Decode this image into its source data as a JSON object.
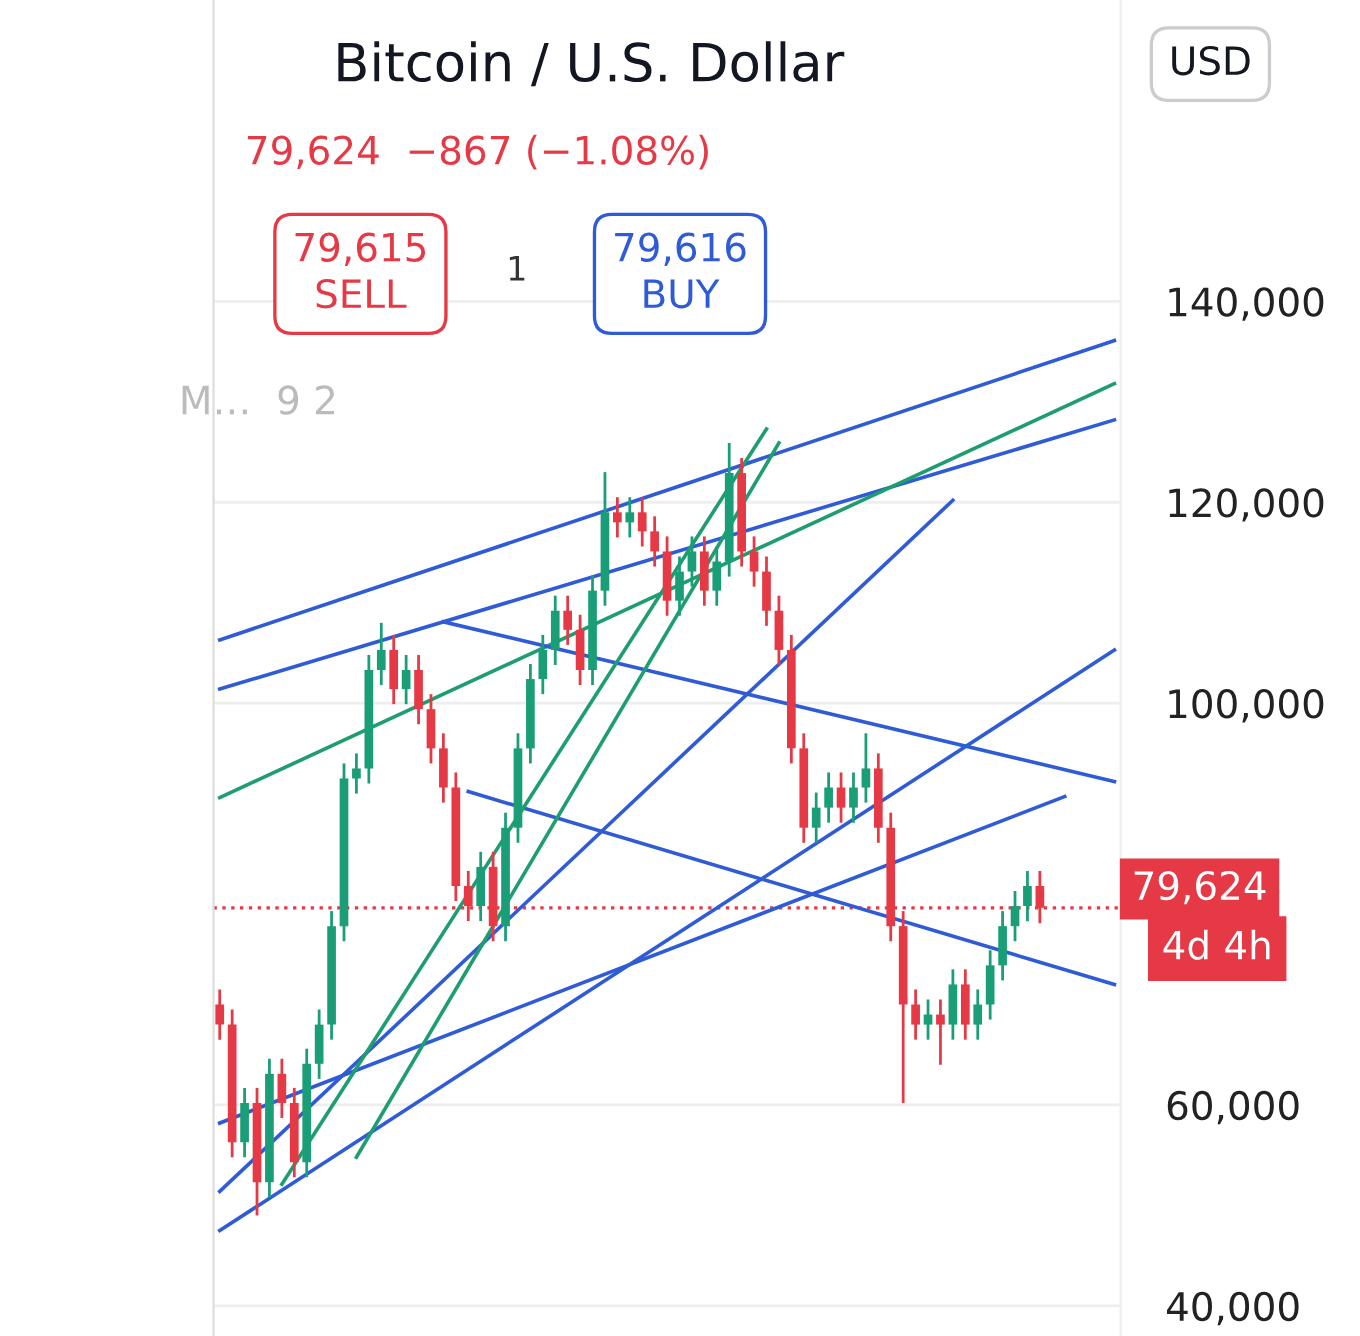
{
  "chart_data": {
    "type": "candlestick",
    "title": "Bitcoin / U.S. Dollar",
    "subtitle": "79,624  −867 (−1.08%)",
    "categories": [
      null,
      null,
      null,
      null,
      null,
      null,
      null,
      null,
      null,
      null,
      null,
      null,
      null,
      null,
      null,
      null,
      null,
      null,
      null,
      null,
      null,
      null,
      null,
      null,
      null,
      null,
      null,
      null,
      null,
      null,
      null,
      null,
      null,
      null,
      null,
      null,
      null,
      null,
      null,
      null,
      null,
      null,
      null,
      null,
      null,
      null,
      null,
      null,
      null,
      null,
      null,
      null,
      null,
      null,
      null,
      null,
      null,
      null,
      null,
      null,
      null,
      null,
      null,
      null,
      null,
      null,
      null,
      null,
      null,
      null,
      null,
      null,
      null
    ],
    "ohlc": [
      [
        70000,
        71500,
        66500,
        68000
      ],
      [
        68000,
        69500,
        54800,
        56300
      ],
      [
        56300,
        61700,
        54800,
        60200
      ],
      [
        60200,
        61700,
        49000,
        52300
      ],
      [
        52300,
        64600,
        50800,
        63100
      ],
      [
        63100,
        64600,
        58700,
        60200
      ],
      [
        60200,
        61700,
        52800,
        54300
      ],
      [
        54300,
        65600,
        52800,
        64100
      ],
      [
        64100,
        69500,
        62600,
        68000
      ],
      [
        68000,
        79300,
        66500,
        77800
      ],
      [
        77800,
        94000,
        76300,
        92500
      ],
      [
        92500,
        95000,
        91000,
        93500
      ],
      [
        93500,
        104800,
        92000,
        103300
      ],
      [
        103300,
        108000,
        101800,
        105300
      ],
      [
        105300,
        106800,
        99900,
        101400
      ],
      [
        101400,
        104800,
        99900,
        103300
      ],
      [
        103300,
        104800,
        97900,
        99400
      ],
      [
        99400,
        100900,
        94000,
        95500
      ],
      [
        95500,
        97000,
        90100,
        91600
      ],
      [
        91600,
        93100,
        80300,
        81800
      ],
      [
        81800,
        83300,
        78300,
        79800
      ],
      [
        79800,
        85200,
        78300,
        83700
      ],
      [
        83700,
        85200,
        76300,
        77800
      ],
      [
        77800,
        89100,
        76300,
        87600
      ],
      [
        87600,
        97000,
        86100,
        95500
      ],
      [
        95500,
        103900,
        94000,
        102400
      ],
      [
        102400,
        106800,
        100900,
        105300
      ],
      [
        105300,
        110700,
        103800,
        109200
      ],
      [
        109200,
        110700,
        105800,
        107300
      ],
      [
        107300,
        108800,
        101800,
        103300
      ],
      [
        103300,
        112700,
        101800,
        111200
      ],
      [
        111200,
        123000,
        109700,
        119000
      ],
      [
        119000,
        120500,
        116500,
        118000
      ],
      [
        118000,
        120500,
        116500,
        119000
      ],
      [
        119000,
        120500,
        115600,
        117100
      ],
      [
        117100,
        118600,
        113600,
        115100
      ],
      [
        115100,
        116600,
        108700,
        110200
      ],
      [
        110200,
        114600,
        108700,
        113100
      ],
      [
        113100,
        116600,
        111600,
        115100
      ],
      [
        115100,
        116600,
        109700,
        111200
      ],
      [
        111200,
        115600,
        109700,
        114100
      ],
      [
        114100,
        125900,
        112600,
        122900
      ],
      [
        122900,
        124400,
        113600,
        115100
      ],
      [
        115100,
        116600,
        111600,
        113100
      ],
      [
        113100,
        114600,
        107700,
        109200
      ],
      [
        109200,
        110700,
        103800,
        105300
      ],
      [
        105300,
        106800,
        94000,
        95500
      ],
      [
        95500,
        97000,
        86100,
        87600
      ],
      [
        87600,
        91100,
        86100,
        89600
      ],
      [
        89600,
        93100,
        88100,
        91600
      ],
      [
        91600,
        93100,
        88100,
        89600
      ],
      [
        89600,
        93100,
        88100,
        91600
      ],
      [
        91600,
        97000,
        90100,
        93500
      ],
      [
        93500,
        95000,
        86100,
        87600
      ],
      [
        87600,
        89100,
        76300,
        77800
      ],
      [
        77800,
        79300,
        60200,
        70000
      ],
      [
        70000,
        71500,
        66500,
        68000
      ],
      [
        68000,
        70500,
        66500,
        69000
      ],
      [
        69000,
        70500,
        64000,
        68000
      ],
      [
        68000,
        73500,
        66500,
        72000
      ],
      [
        72000,
        73500,
        66500,
        68000
      ],
      [
        68000,
        71500,
        66500,
        70000
      ],
      [
        70000,
        75400,
        68500,
        73900
      ],
      [
        73900,
        79300,
        72400,
        77800
      ],
      [
        77800,
        81300,
        76300,
        79800
      ],
      [
        79800,
        83300,
        78300,
        81800
      ],
      [
        81800,
        83300,
        78100,
        79624
      ],
      null,
      null,
      null,
      null,
      null,
      null
    ],
    "series": [
      {
        "type": "line",
        "color": "#2f5bd6",
        "values": [
          106300,
          null,
          null,
          null,
          null,
          null,
          null,
          null,
          null,
          null,
          null,
          null,
          null,
          null,
          null,
          null,
          null,
          null,
          null,
          null,
          null,
          null,
          null,
          null,
          null,
          null,
          null,
          null,
          null,
          null,
          null,
          null,
          null,
          null,
          null,
          null,
          null,
          null,
          null,
          null,
          null,
          null,
          null,
          null,
          null,
          null,
          null,
          null,
          null,
          null,
          null,
          null,
          null,
          null,
          null,
          null,
          null,
          null,
          null,
          null,
          null,
          null,
          null,
          null,
          null,
          null,
          null,
          null,
          null,
          null,
          null,
          null,
          136100
        ]
      },
      {
        "type": "line",
        "color": "#2f5bd6",
        "values": [
          101400,
          null,
          null,
          null,
          null,
          null,
          null,
          null,
          null,
          null,
          null,
          null,
          null,
          null,
          null,
          null,
          null,
          null,
          null,
          null,
          null,
          null,
          null,
          null,
          null,
          null,
          null,
          null,
          null,
          null,
          null,
          null,
          null,
          null,
          null,
          null,
          null,
          null,
          null,
          null,
          null,
          null,
          null,
          null,
          null,
          null,
          null,
          null,
          null,
          null,
          null,
          null,
          null,
          null,
          null,
          null,
          null,
          null,
          null,
          null,
          null,
          null,
          null,
          null,
          null,
          null,
          null,
          null,
          null,
          null,
          null,
          null,
          128200
        ]
      },
      {
        "type": "line",
        "color": "#1e9e6e",
        "values": [
          90600,
          null,
          null,
          null,
          null,
          null,
          null,
          null,
          null,
          null,
          null,
          null,
          null,
          null,
          null,
          null,
          null,
          null,
          null,
          null,
          null,
          null,
          null,
          null,
          null,
          null,
          null,
          null,
          null,
          null,
          null,
          null,
          null,
          null,
          null,
          null,
          null,
          null,
          null,
          null,
          null,
          null,
          null,
          null,
          null,
          null,
          null,
          null,
          null,
          null,
          null,
          null,
          null,
          null,
          null,
          null,
          null,
          null,
          null,
          null,
          null,
          null,
          null,
          null,
          null,
          null,
          null,
          null,
          null,
          null,
          null,
          null,
          131800
        ]
      },
      {
        "type": "line",
        "color": "#2f5bd6",
        "values": [
          null,
          null,
          null,
          null,
          null,
          null,
          null,
          null,
          null,
          null,
          null,
          null,
          null,
          null,
          null,
          null,
          null,
          null,
          108100,
          null,
          null,
          null,
          null,
          null,
          null,
          null,
          null,
          null,
          null,
          null,
          null,
          null,
          null,
          null,
          null,
          null,
          null,
          null,
          null,
          null,
          null,
          null,
          null,
          null,
          null,
          null,
          null,
          null,
          null,
          null,
          null,
          null,
          null,
          null,
          null,
          null,
          null,
          null,
          null,
          null,
          null,
          null,
          null,
          null,
          null,
          null,
          null,
          null,
          null,
          null,
          null,
          null,
          92200
        ]
      },
      {
        "type": "line",
        "color": "#2f5bd6",
        "values": [
          null,
          null,
          null,
          null,
          null,
          null,
          null,
          null,
          null,
          null,
          null,
          null,
          null,
          null,
          null,
          null,
          null,
          null,
          null,
          null,
          91200,
          null,
          null,
          null,
          null,
          null,
          null,
          null,
          null,
          null,
          null,
          null,
          null,
          null,
          null,
          null,
          null,
          null,
          null,
          null,
          null,
          null,
          null,
          null,
          null,
          null,
          null,
          null,
          null,
          null,
          null,
          null,
          null,
          null,
          null,
          null,
          null,
          null,
          null,
          null,
          null,
          null,
          null,
          null,
          null,
          null,
          null,
          null,
          null,
          null,
          null,
          null,
          72000
        ]
      },
      {
        "type": "line",
        "color": "#2f5bd6",
        "values": [
          58200,
          null,
          null,
          null,
          null,
          null,
          null,
          null,
          null,
          null,
          null,
          null,
          null,
          null,
          null,
          null,
          null,
          null,
          null,
          null,
          null,
          null,
          null,
          null,
          null,
          null,
          null,
          null,
          null,
          null,
          null,
          null,
          null,
          null,
          null,
          null,
          null,
          null,
          null,
          null,
          null,
          null,
          null,
          null,
          null,
          null,
          null,
          null,
          null,
          null,
          null,
          null,
          null,
          null,
          null,
          null,
          null,
          null,
          null,
          null,
          null,
          null,
          null,
          null,
          null,
          null,
          null,
          null,
          90700,
          null,
          null,
          null,
          null
        ]
      },
      {
        "type": "line",
        "color": "#2f5bd6",
        "values": [
          47500,
          null,
          null,
          null,
          null,
          null,
          null,
          null,
          null,
          null,
          null,
          null,
          null,
          null,
          null,
          null,
          null,
          null,
          null,
          null,
          null,
          null,
          null,
          null,
          null,
          null,
          null,
          null,
          null,
          null,
          null,
          null,
          null,
          null,
          null,
          null,
          null,
          null,
          null,
          null,
          null,
          null,
          null,
          null,
          null,
          null,
          null,
          null,
          null,
          null,
          null,
          null,
          null,
          null,
          null,
          null,
          null,
          null,
          null,
          null,
          null,
          null,
          null,
          null,
          null,
          null,
          null,
          null,
          null,
          null,
          null,
          null,
          105300
        ]
      },
      {
        "type": "line",
        "color": "#2f5bd6",
        "values": [
          51400,
          null,
          null,
          null,
          null,
          null,
          null,
          null,
          null,
          null,
          null,
          null,
          null,
          null,
          null,
          null,
          null,
          null,
          null,
          null,
          null,
          null,
          null,
          null,
          null,
          null,
          null,
          null,
          null,
          null,
          null,
          null,
          null,
          null,
          null,
          null,
          null,
          null,
          null,
          null,
          null,
          null,
          null,
          null,
          null,
          null,
          null,
          null,
          null,
          null,
          null,
          null,
          null,
          null,
          null,
          null,
          null,
          null,
          null,
          120200,
          null,
          null,
          null,
          null,
          null,
          null,
          null,
          null,
          null,
          null,
          null,
          null,
          null
        ]
      },
      {
        "type": "line",
        "color": "#1e9e6e",
        "values": [
          null,
          null,
          null,
          null,
          null,
          52100,
          null,
          null,
          null,
          null,
          null,
          null,
          null,
          null,
          null,
          null,
          null,
          null,
          null,
          null,
          null,
          null,
          null,
          null,
          null,
          null,
          null,
          null,
          null,
          null,
          null,
          null,
          null,
          null,
          null,
          null,
          null,
          null,
          null,
          null,
          null,
          null,
          null,
          null,
          127300,
          null,
          null,
          null,
          null,
          null,
          null,
          null,
          null,
          null,
          null,
          null,
          null,
          null,
          null,
          null,
          null,
          null,
          null,
          null,
          null,
          null,
          null,
          null,
          null,
          null,
          null,
          null,
          null
        ]
      },
      {
        "type": "line",
        "color": "#1e9e6e",
        "values": [
          null,
          null,
          null,
          null,
          null,
          null,
          null,
          null,
          null,
          null,
          null,
          54800,
          null,
          null,
          null,
          null,
          null,
          null,
          null,
          null,
          null,
          null,
          null,
          null,
          null,
          null,
          null,
          null,
          null,
          null,
          null,
          null,
          null,
          null,
          null,
          null,
          null,
          null,
          null,
          null,
          null,
          null,
          null,
          null,
          null,
          125900,
          null,
          null,
          null,
          null,
          null,
          null,
          null,
          null,
          null,
          null,
          null,
          null,
          null,
          null,
          null,
          null,
          null,
          null,
          null,
          null,
          null,
          null,
          null,
          null,
          null,
          null,
          null
        ]
      }
    ],
    "ylim": [
      37000,
      170000
    ],
    "yticks": [
      {
        "value": 40000,
        "label": "40,000"
      },
      {
        "value": 60000,
        "label": "60,000"
      },
      {
        "value": 100000,
        "label": "100,000"
      },
      {
        "value": 120000,
        "label": "120,000"
      },
      {
        "value": 140000,
        "label": "140,000"
      }
    ],
    "tick_labels": "y",
    "grid": "y",
    "ref_lines": [
      {
        "axis": "y",
        "value": 79624,
        "label": "79,624",
        "color": "#e53945",
        "line_style": "dotted"
      }
    ],
    "annotations": [
      "79,615\nSELL",
      "1",
      "79,616\nBUY",
      "M…  9 2",
      "4d 4h",
      "USD"
    ]
  }
}
